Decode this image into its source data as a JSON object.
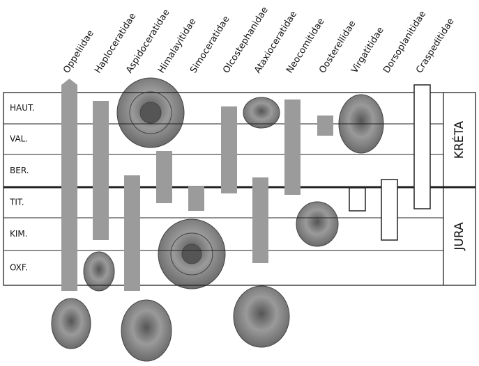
{
  "families": [
    "Oppeliidae",
    "Haploceratidae",
    "Aspidoceratidae",
    "Himalayitidae",
    "Simoceratidae",
    "Olcostephanidae",
    "Ataxioceratidae",
    "Neocomitidae",
    "Oosterellidae",
    "Virgatitidae",
    "Dorsoplanitidae",
    "Craspeditidae"
  ],
  "stages": [
    "HAUT.",
    "VAL.",
    "BER.",
    "TIT.",
    "KIM.",
    "OXF."
  ],
  "periods": [
    "KRÉTA",
    "JURA"
  ]
}
